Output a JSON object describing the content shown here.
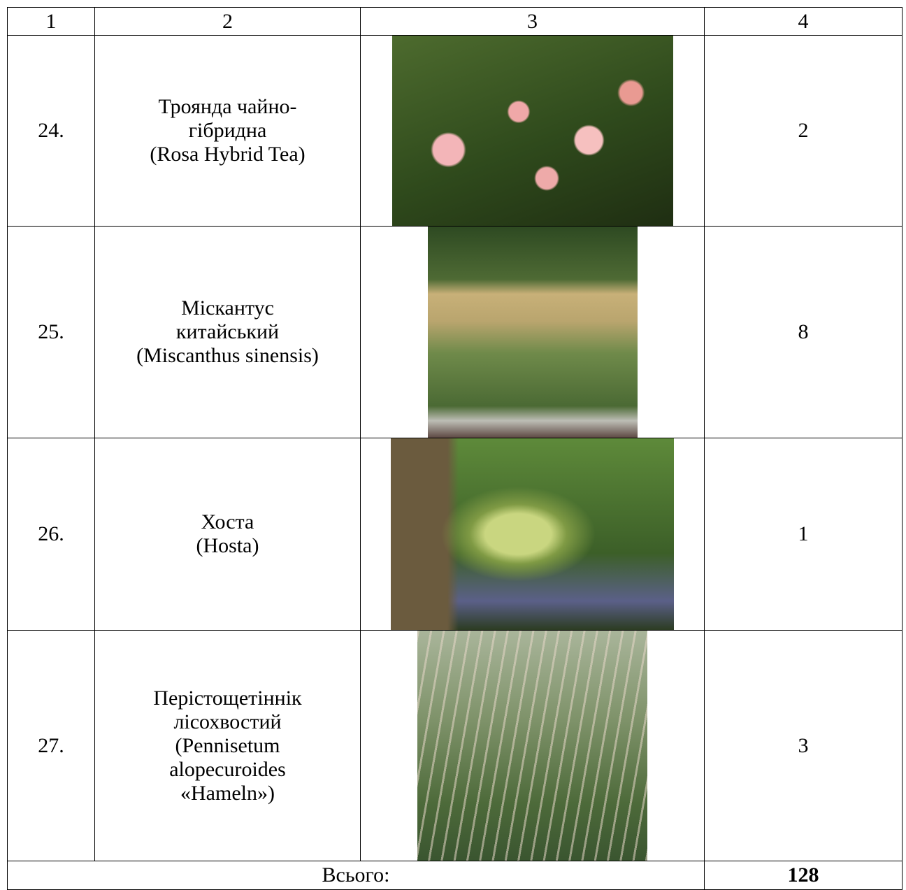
{
  "table": {
    "header": [
      "1",
      "2",
      "3",
      "4"
    ],
    "rows": [
      {
        "number": "24.",
        "name": [
          "Троянда чайно-",
          "гібридна",
          "(Rosa Hybrid Tea)"
        ],
        "quantity": 2
      },
      {
        "number": "25.",
        "name": [
          "Міскантус",
          "китайський",
          "(Miscanthus sinensis)"
        ],
        "quantity": 8
      },
      {
        "number": "26.",
        "name": [
          "Хоста",
          "(Hosta)"
        ],
        "quantity": 1
      },
      {
        "number": "27.",
        "name": [
          "Перістощетіннік",
          "лісохвостий",
          "(Pennisetum",
          "alopecuroides",
          "«Hameln»)"
        ],
        "quantity": 3
      }
    ],
    "total_label": "Всього:",
    "total": 128
  }
}
